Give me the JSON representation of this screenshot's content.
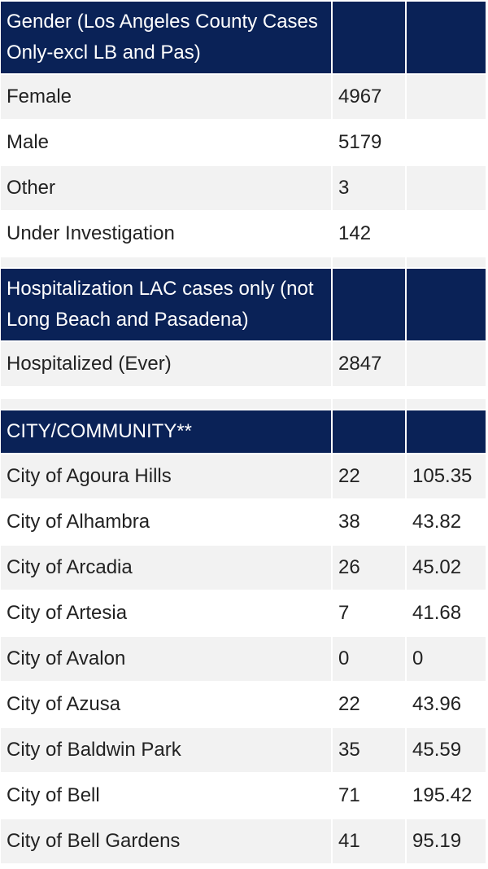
{
  "gender_section": {
    "header": "Gender (Los Angeles County Cases Only-excl LB and Pas)",
    "rows": [
      {
        "label": "Female",
        "count": "4967",
        "rate": ""
      },
      {
        "label": "Male",
        "count": "5179",
        "rate": ""
      },
      {
        "label": "Other",
        "count": "3",
        "rate": ""
      },
      {
        "label": "Under Investigation",
        "count": "142",
        "rate": ""
      }
    ]
  },
  "hospitalization_section": {
    "header": "Hospitalization LAC cases only (not Long Beach and Pasadena)",
    "rows": [
      {
        "label": "Hospitalized (Ever)",
        "count": "2847",
        "rate": ""
      }
    ]
  },
  "city_section": {
    "header": "CITY/COMMUNITY**",
    "rows": [
      {
        "label": "City of Agoura Hills",
        "count": "22",
        "rate": "105.35"
      },
      {
        "label": "City of Alhambra",
        "count": "38",
        "rate": "43.82"
      },
      {
        "label": "City of Arcadia",
        "count": "26",
        "rate": "45.02"
      },
      {
        "label": "City of Artesia",
        "count": "7",
        "rate": "41.68"
      },
      {
        "label": "City of Avalon",
        "count": "0",
        "rate": "0"
      },
      {
        "label": "City of Azusa",
        "count": "22",
        "rate": "43.96"
      },
      {
        "label": "City of Baldwin Park",
        "count": "35",
        "rate": "45.59"
      },
      {
        "label": "City of Bell",
        "count": "71",
        "rate": "195.42"
      },
      {
        "label": "City of Bell Gardens",
        "count": "41",
        "rate": "95.19"
      }
    ]
  }
}
